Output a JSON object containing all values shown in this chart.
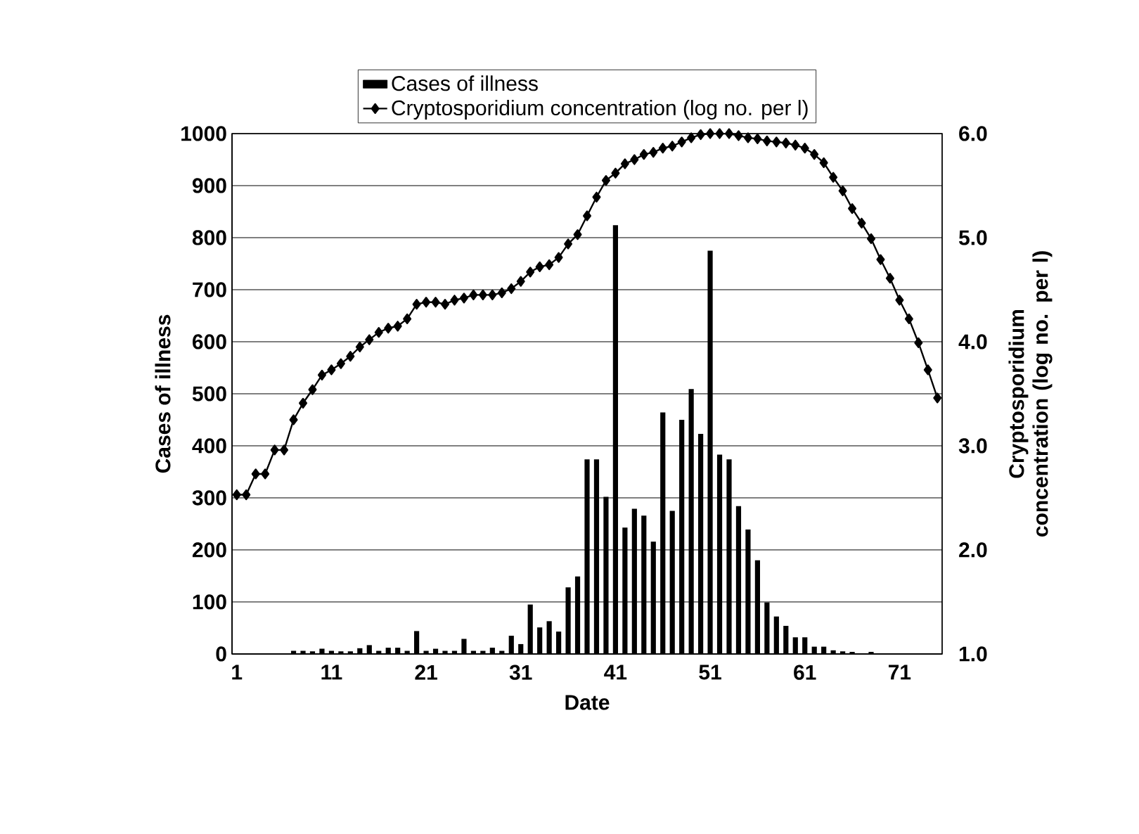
{
  "chart_data": {
    "type": "bar",
    "xlabel": "Date",
    "ylabel": "Cases of illness",
    "y2label": "Cryptosporidium concentration (log no. per l)",
    "x": [
      1,
      2,
      3,
      4,
      5,
      6,
      7,
      8,
      9,
      10,
      11,
      12,
      13,
      14,
      15,
      16,
      17,
      18,
      19,
      20,
      21,
      22,
      23,
      24,
      25,
      26,
      27,
      28,
      29,
      30,
      31,
      32,
      33,
      34,
      35,
      36,
      37,
      38,
      39,
      40,
      41,
      42,
      43,
      44,
      45,
      46,
      47,
      48,
      49,
      50,
      51,
      52,
      53,
      54,
      55,
      56,
      57,
      58,
      59,
      60,
      61,
      62,
      63,
      64,
      65,
      66,
      67,
      68,
      69,
      70,
      71,
      72,
      73,
      74,
      75
    ],
    "series": [
      {
        "name": "Cases of illness",
        "color": "#000000",
        "values": [
          0,
          0,
          0,
          0,
          0,
          0,
          6,
          6,
          5,
          10,
          6,
          5,
          5,
          11,
          17,
          6,
          12,
          12,
          6,
          44,
          6,
          10,
          6,
          6,
          29,
          6,
          6,
          12,
          6,
          35,
          19,
          95,
          51,
          63,
          43,
          128,
          149,
          374,
          374,
          302,
          824,
          243,
          279,
          266,
          216,
          464,
          275,
          450,
          509,
          423,
          775,
          383,
          374,
          284,
          239,
          180,
          99,
          72,
          54,
          32,
          32,
          14,
          14,
          7,
          5,
          4,
          0,
          4,
          0,
          0,
          0,
          0,
          0,
          0,
          0
        ]
      },
      {
        "type": "line",
        "axis": "y2",
        "name": "Cryptosporidium concentration (log no. per l)",
        "color": "#000000",
        "marker": "diamond",
        "values": [
          2.53,
          2.53,
          2.73,
          2.73,
          2.96,
          2.96,
          3.25,
          3.41,
          3.54,
          3.68,
          3.73,
          3.79,
          3.86,
          3.95,
          4.02,
          4.09,
          4.13,
          4.15,
          4.22,
          4.36,
          4.38,
          4.38,
          4.36,
          4.4,
          4.42,
          4.45,
          4.45,
          4.45,
          4.47,
          4.51,
          4.58,
          4.67,
          4.72,
          4.74,
          4.81,
          4.94,
          5.03,
          5.21,
          5.39,
          5.55,
          5.62,
          5.71,
          5.75,
          5.8,
          5.82,
          5.86,
          5.88,
          5.92,
          5.96,
          5.99,
          6.0,
          6.0,
          6.0,
          5.98,
          5.96,
          5.95,
          5.93,
          5.92,
          5.91,
          5.89,
          5.86,
          5.8,
          5.72,
          5.58,
          5.45,
          5.28,
          5.14,
          4.99,
          4.79,
          4.61,
          4.4,
          4.22,
          3.99,
          3.73,
          3.46
        ]
      }
    ],
    "xlim": [
      0.5,
      75.5
    ],
    "xticks": [
      1,
      11,
      21,
      31,
      41,
      51,
      61,
      71
    ],
    "ylim": [
      0,
      1000
    ],
    "yticks": [
      0,
      100,
      200,
      300,
      400,
      500,
      600,
      700,
      800,
      900,
      1000
    ],
    "y2lim": [
      1,
      6
    ],
    "y2ticks": [
      {
        "value": 1,
        "label": "1.0"
      },
      {
        "value": 2,
        "label": "2.0"
      },
      {
        "value": 3,
        "label": "3.0"
      },
      {
        "value": 4,
        "label": "4.0"
      },
      {
        "value": 5,
        "label": "5.0"
      },
      {
        "value": 6,
        "label": "6.0"
      }
    ],
    "grid": "y",
    "legend": "top"
  }
}
